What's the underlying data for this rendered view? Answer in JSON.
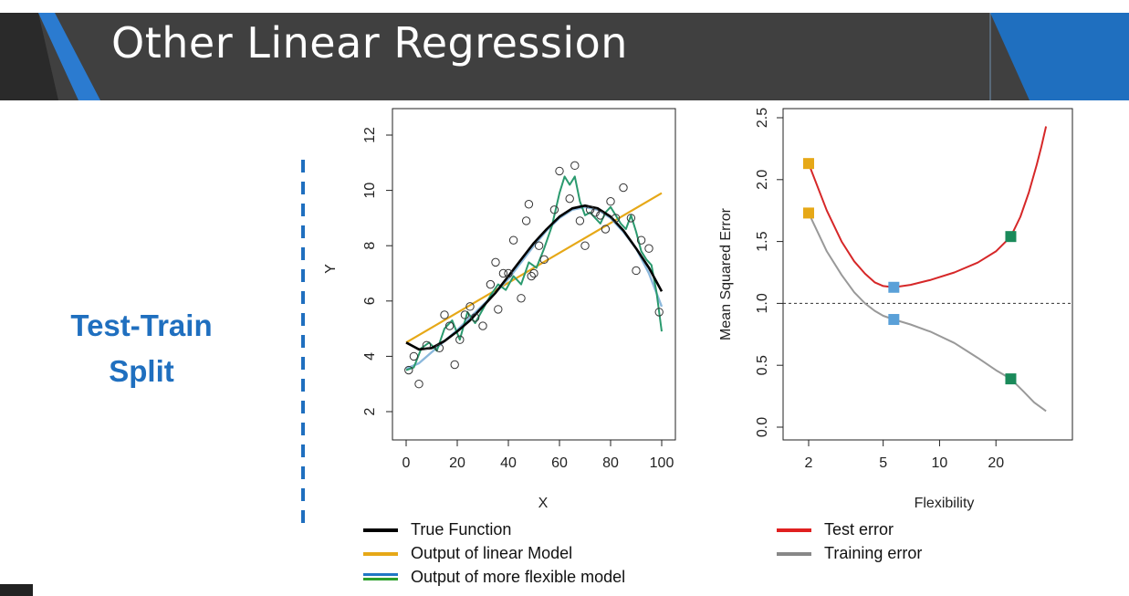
{
  "slide": {
    "title": "Other Linear Regression",
    "side_label_line1": "Test-Train",
    "side_label_line2": "Split"
  },
  "colors": {
    "title_bar": "#404040",
    "accent_blue": "#1f6fbf",
    "true_function": "#000000",
    "linear_model": "#e6a817",
    "flexible_model_blue": "#7fb1d8",
    "flexible_model_green": "#2a9a6e",
    "test_error": "#d62728",
    "training_error": "#999999"
  },
  "legend_left": [
    {
      "label": "True Function",
      "color": "#000000"
    },
    {
      "label": "Output of linear Model",
      "color": "#e6a817"
    },
    {
      "label": "Output of more flexible model",
      "color": "#1f77c4",
      "color2": "#2ca02c"
    }
  ],
  "legend_right": [
    {
      "label": "Test error",
      "color": "#e02020"
    },
    {
      "label": "Training error",
      "color": "#888888"
    }
  ],
  "chart_data": [
    {
      "type": "scatter",
      "title": "",
      "xlabel": "X",
      "ylabel": "Y",
      "xlim": [
        0,
        100
      ],
      "ylim": [
        2,
        12
      ],
      "xticks": [
        0,
        20,
        40,
        60,
        80,
        100
      ],
      "yticks": [
        2,
        4,
        6,
        8,
        10,
        12
      ],
      "points": {
        "x": [
          1,
          3,
          5,
          8,
          13,
          15,
          17,
          19,
          21,
          23,
          25,
          27,
          30,
          33,
          35,
          36,
          38,
          40,
          42,
          45,
          47,
          48,
          49,
          50,
          52,
          54,
          58,
          60,
          64,
          66,
          68,
          70,
          72,
          74,
          76,
          78,
          80,
          82,
          85,
          88,
          90,
          92,
          95,
          99
        ],
        "y": [
          3.5,
          4.0,
          3.0,
          4.4,
          4.3,
          5.5,
          5.1,
          3.7,
          4.6,
          5.5,
          5.8,
          5.4,
          5.1,
          6.6,
          7.4,
          5.7,
          7.0,
          7.0,
          8.2,
          6.1,
          8.9,
          9.5,
          6.9,
          7.0,
          8.0,
          7.5,
          9.3,
          10.7,
          9.7,
          10.9,
          8.9,
          8.0,
          9.3,
          9.2,
          9.1,
          8.6,
          9.6,
          9.0,
          10.1,
          9.0,
          7.1,
          8.2,
          7.9,
          5.6
        ]
      },
      "series": [
        {
          "name": "True Function",
          "x": [
            0,
            5,
            10,
            15,
            20,
            25,
            30,
            35,
            40,
            45,
            50,
            55,
            60,
            65,
            70,
            75,
            80,
            85,
            90,
            95,
            100
          ],
          "y": [
            4.5,
            4.25,
            4.3,
            4.55,
            4.9,
            5.3,
            5.8,
            6.3,
            6.9,
            7.5,
            8.1,
            8.6,
            9.05,
            9.35,
            9.45,
            9.35,
            9.05,
            8.55,
            7.9,
            7.2,
            6.35
          ]
        },
        {
          "name": "Output of linear Model",
          "x": [
            0,
            100
          ],
          "y": [
            4.5,
            9.9
          ]
        },
        {
          "name": "Output of more flexible model (smooth)",
          "x": [
            0,
            5,
            10,
            15,
            20,
            25,
            30,
            35,
            40,
            45,
            50,
            55,
            60,
            65,
            70,
            75,
            80,
            85,
            90,
            95,
            100
          ],
          "y": [
            3.55,
            3.75,
            4.15,
            4.55,
            4.95,
            5.4,
            5.85,
            6.3,
            6.8,
            7.4,
            8.0,
            8.55,
            9.0,
            9.3,
            9.4,
            9.3,
            9.0,
            8.5,
            7.9,
            7.0,
            5.8
          ]
        },
        {
          "name": "Output of more flexible model (wiggly)",
          "x": [
            0,
            3,
            6,
            9,
            12,
            15,
            18,
            21,
            24,
            27,
            30,
            33,
            36,
            39,
            42,
            45,
            48,
            51,
            54,
            57,
            60,
            62,
            64,
            66,
            68,
            70,
            72,
            74,
            76,
            78,
            80,
            82,
            84,
            86,
            88,
            90,
            92,
            94,
            96,
            98,
            100
          ],
          "y": [
            3.5,
            3.6,
            4.3,
            4.5,
            4.2,
            5.0,
            5.3,
            4.6,
            5.6,
            5.2,
            5.7,
            6.2,
            6.6,
            6.4,
            6.9,
            6.6,
            7.4,
            7.2,
            7.9,
            8.7,
            9.9,
            10.5,
            10.2,
            10.5,
            9.6,
            9.1,
            9.2,
            9.0,
            8.8,
            9.2,
            9.4,
            9.1,
            8.8,
            8.6,
            9.1,
            8.5,
            7.8,
            7.5,
            7.3,
            6.3,
            4.9
          ]
        }
      ]
    },
    {
      "type": "line",
      "title": "",
      "xlabel": "Flexibility",
      "ylabel": "Mean Squared Error",
      "xscale": "log",
      "xlim": [
        1.87,
        40
      ],
      "ylim": [
        0,
        2.5
      ],
      "xticks": [
        2,
        5,
        10,
        20
      ],
      "yticks": [
        0.0,
        0.5,
        1.0,
        1.5,
        2.0,
        2.5
      ],
      "reference_line": 1.0,
      "series": [
        {
          "name": "Test error",
          "x": [
            2,
            2.5,
            3,
            3.5,
            4,
            4.5,
            5,
            5.7,
            7,
            9,
            12,
            16,
            20,
            24,
            27,
            30,
            33,
            35,
            37
          ],
          "y": [
            2.13,
            1.75,
            1.5,
            1.34,
            1.24,
            1.17,
            1.14,
            1.13,
            1.15,
            1.19,
            1.25,
            1.33,
            1.42,
            1.54,
            1.7,
            1.9,
            2.12,
            2.27,
            2.43
          ]
        },
        {
          "name": "Training error",
          "x": [
            2,
            2.5,
            3,
            3.5,
            4,
            4.5,
            5,
            5.7,
            7,
            9,
            12,
            16,
            20,
            24,
            28,
            32,
            37
          ],
          "y": [
            1.73,
            1.42,
            1.23,
            1.09,
            1.0,
            0.94,
            0.9,
            0.87,
            0.83,
            0.77,
            0.68,
            0.56,
            0.46,
            0.39,
            0.29,
            0.2,
            0.13
          ]
        }
      ],
      "markers": [
        {
          "x": 2,
          "y": 2.13,
          "color": "#e6a817"
        },
        {
          "x": 2,
          "y": 1.73,
          "color": "#e6a817"
        },
        {
          "x": 5.7,
          "y": 1.13,
          "color": "#5aa0d8"
        },
        {
          "x": 5.7,
          "y": 0.87,
          "color": "#5aa0d8"
        },
        {
          "x": 24,
          "y": 1.54,
          "color": "#1a8a5a"
        },
        {
          "x": 24,
          "y": 0.39,
          "color": "#1a8a5a"
        }
      ]
    }
  ]
}
